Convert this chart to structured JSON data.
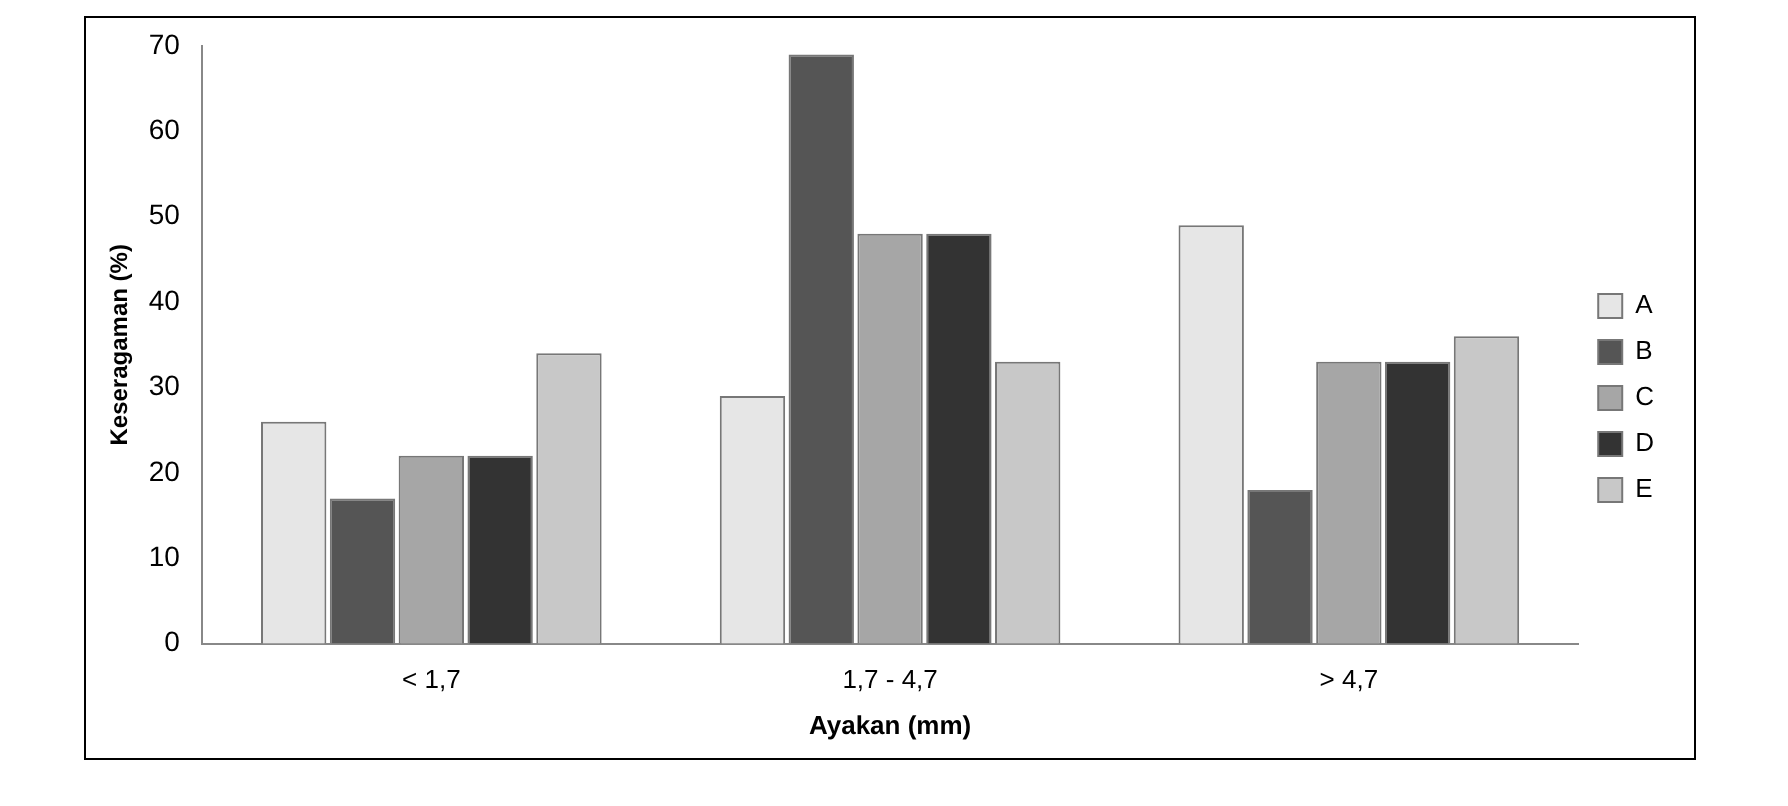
{
  "chart_data": {
    "type": "bar",
    "xlabel": "Ayakan (mm)",
    "ylabel": "Keseragaman (%)",
    "categories": [
      "< 1,7",
      "1,7 - 4,7",
      "> 4,7"
    ],
    "series": [
      {
        "name": "A",
        "color": "#e6e6e6",
        "values": [
          26,
          29,
          49
        ]
      },
      {
        "name": "B",
        "color": "#555555",
        "values": [
          17,
          69,
          18
        ]
      },
      {
        "name": "C",
        "color": "#a6a6a6",
        "values": [
          22,
          48,
          33
        ]
      },
      {
        "name": "D",
        "color": "#333333",
        "values": [
          22,
          48,
          33
        ]
      },
      {
        "name": "E",
        "color": "#c8c8c8",
        "values": [
          34,
          33,
          36
        ]
      }
    ],
    "ylim": [
      0,
      70
    ],
    "yticks": [
      0,
      10,
      20,
      30,
      40,
      50,
      60,
      70
    ],
    "grid": false,
    "legend": "right"
  }
}
